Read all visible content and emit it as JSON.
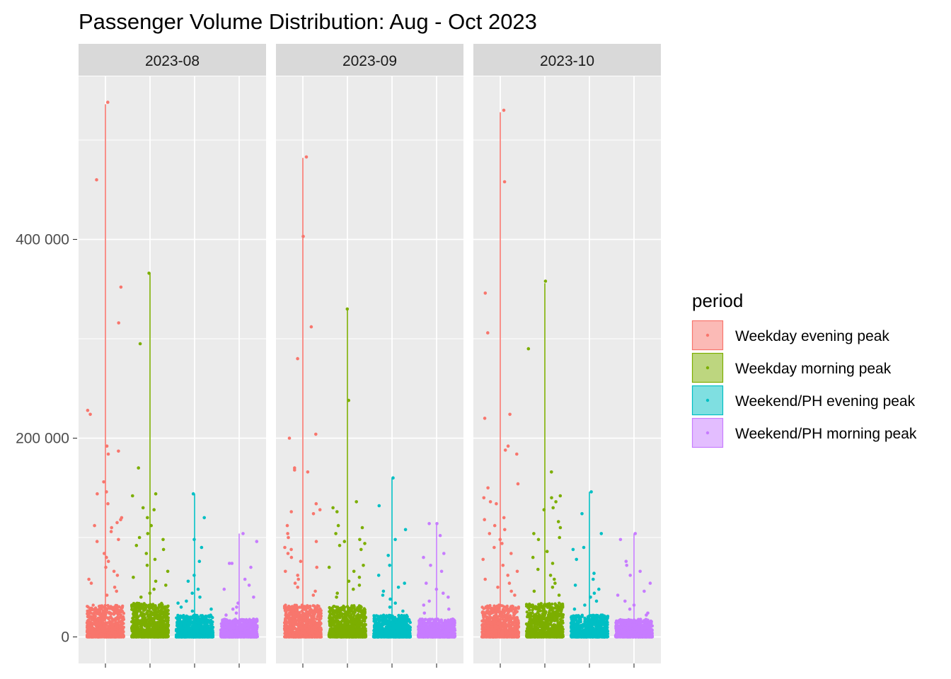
{
  "chart_data": {
    "type": "scatter",
    "title": "Passenger Volume Distribution: Aug - Oct 2023",
    "xlabel": "",
    "ylabel": "",
    "y_ticks": [
      {
        "value": 0,
        "label": "0"
      },
      {
        "value": 200000,
        "label": "200 000"
      },
      {
        "value": 400000,
        "label": "400 000"
      }
    ],
    "ylim": [
      -25000,
      565000
    ],
    "grid": true,
    "legend": {
      "title": "period",
      "placement": "right",
      "entries": [
        {
          "label": "Weekday evening peak",
          "color": "#F8766D"
        },
        {
          "label": "Weekday morning peak",
          "color": "#7CAE00"
        },
        {
          "label": "Weekend/PH evening peak",
          "color": "#00BFC4"
        },
        {
          "label": "Weekend/PH morning peak",
          "color": "#C77CFF"
        }
      ]
    },
    "panels": [
      {
        "label": "2023-08",
        "series": [
          {
            "name": "Weekday evening peak",
            "max": 536000,
            "dense_max": 32000,
            "outliers": [
              538000,
              460000,
              352000,
              316000,
              228000,
              224000,
              192000,
              187000,
              184000,
              156000,
              146000,
              144000,
              134000,
              120000,
              118000,
              115000,
              112000,
              110000,
              106000,
              98000,
              96000,
              84000,
              80000,
              76000,
              70000,
              66000,
              62000,
              58000,
              54000,
              50000,
              46000,
              42000
            ]
          },
          {
            "name": "Weekday morning peak",
            "max": 366000,
            "dense_max": 34000,
            "outliers": [
              366000,
              295000,
              170000,
              144000,
              142000,
              130000,
              128000,
              120000,
              112000,
              104000,
              100000,
              98000,
              92000,
              88000,
              84000,
              78000,
              72000,
              66000,
              60000,
              56000,
              52000,
              48000,
              44000,
              40000
            ]
          },
          {
            "name": "Weekend/PH evening peak",
            "max": 144000,
            "dense_max": 22000,
            "outliers": [
              144000,
              120000,
              98000,
              90000,
              76000,
              62000,
              56000,
              48000,
              44000,
              40000,
              36000,
              34000,
              30000,
              28000,
              26000
            ]
          },
          {
            "name": "Weekend/PH morning peak",
            "max": 104000,
            "dense_max": 18000,
            "outliers": [
              104000,
              96000,
              74000,
              74000,
              70000,
              58000,
              52000,
              48000,
              40000,
              34000,
              30000,
              28000,
              24000,
              22000
            ]
          }
        ]
      },
      {
        "label": "2023-09",
        "series": [
          {
            "name": "Weekday evening peak",
            "max": 482000,
            "dense_max": 32000,
            "outliers": [
              483000,
              403000,
              312000,
              280000,
              204000,
              200000,
              170000,
              168000,
              166000,
              134000,
              128000,
              126000,
              124000,
              112000,
              104000,
              100000,
              96000,
              90000,
              88000,
              84000,
              80000,
              76000,
              70000,
              66000,
              62000,
              58000,
              54000,
              50000,
              46000,
              42000
            ]
          },
          {
            "name": "Weekday morning peak",
            "max": 330000,
            "dense_max": 32000,
            "outliers": [
              330000,
              238000,
              136000,
              130000,
              126000,
              112000,
              110000,
              104000,
              98000,
              96000,
              94000,
              92000,
              88000,
              72000,
              70000,
              66000,
              60000,
              56000,
              52000,
              48000,
              44000,
              40000
            ]
          },
          {
            "name": "Weekend/PH evening peak",
            "max": 160000,
            "dense_max": 22000,
            "outliers": [
              160000,
              132000,
              108000,
              98000,
              82000,
              72000,
              62000,
              54000,
              50000,
              46000,
              42000,
              38000,
              34000,
              30000,
              26000
            ]
          },
          {
            "name": "Weekend/PH morning peak",
            "max": 114000,
            "dense_max": 18000,
            "outliers": [
              114000,
              114000,
              102000,
              84000,
              80000,
              72000,
              66000,
              54000,
              48000,
              44000,
              40000,
              36000,
              32000,
              28000,
              24000
            ]
          }
        ]
      },
      {
        "label": "2023-10",
        "series": [
          {
            "name": "Weekday evening peak",
            "max": 528000,
            "dense_max": 32000,
            "outliers": [
              530000,
              458000,
              346000,
              306000,
              224000,
              220000,
              192000,
              188000,
              184000,
              154000,
              150000,
              140000,
              136000,
              134000,
              120000,
              118000,
              112000,
              108000,
              104000,
              98000,
              94000,
              90000,
              84000,
              78000,
              72000,
              66000,
              62000,
              58000,
              54000,
              50000,
              46000,
              42000
            ]
          },
          {
            "name": "Weekday morning peak",
            "max": 356000,
            "dense_max": 34000,
            "outliers": [
              358000,
              290000,
              166000,
              142000,
              140000,
              136000,
              130000,
              128000,
              116000,
              110000,
              104000,
              100000,
              98000,
              86000,
              80000,
              74000,
              68000,
              62000,
              58000,
              54000,
              50000,
              46000,
              42000
            ]
          },
          {
            "name": "Weekend/PH evening peak",
            "max": 146000,
            "dense_max": 22000,
            "outliers": [
              146000,
              124000,
              104000,
              90000,
              88000,
              78000,
              64000,
              58000,
              52000,
              48000,
              44000,
              40000,
              36000,
              32000,
              28000
            ]
          },
          {
            "name": "Weekend/PH morning peak",
            "max": 104000,
            "dense_max": 18000,
            "outliers": [
              104000,
              98000,
              76000,
              72000,
              66000,
              62000,
              54000,
              46000,
              42000,
              36000,
              32000,
              28000,
              24000,
              22000
            ]
          }
        ]
      }
    ]
  }
}
